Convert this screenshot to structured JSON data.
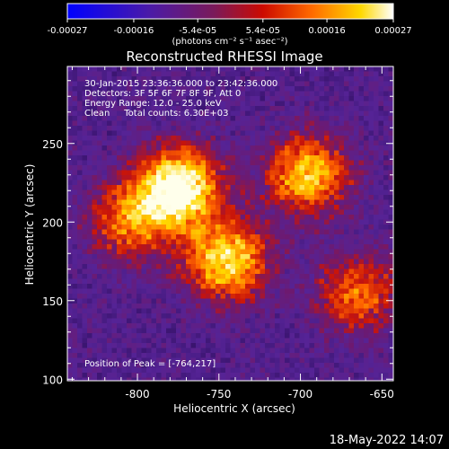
{
  "colorbar": {
    "tick_labels": [
      "-0.00027",
      "-0.00016",
      "-5.4e-05",
      "5.4e-05",
      "0.00016",
      "0.00027"
    ],
    "tick_values": [
      -0.00027,
      -0.00016,
      -5.4e-05,
      5.4e-05,
      0.00016,
      0.00027
    ],
    "range": [
      -0.00027,
      0.00027
    ],
    "unit_label": "(photons cm⁻² s⁻¹ asec⁻²)"
  },
  "chart_data": {
    "type": "heatmap",
    "title": "Reconstructed RHESSI Image",
    "xlabel": "Heliocentric X (arcsec)",
    "ylabel": "Heliocentric Y (arcsec)",
    "xlim": [
      -843,
      -643
    ],
    "ylim": [
      99,
      299
    ],
    "xticks": [
      -800,
      -750,
      -700,
      -650
    ],
    "yticks": [
      100,
      150,
      200,
      250
    ],
    "annotation_lines": [
      "30-Jan-2015 23:36:36.000 to 23:42:36.000",
      "Detectors: 3F 5F 6F 7F 8F 9F, Att 0",
      "Energy Range: 12.0 - 25.0 keV",
      "Clean     Total counts: 6.30E+03"
    ],
    "peak_label": "Position of Peak = [-764,217]",
    "peak": [
      -764,
      217
    ],
    "colormap": "blue-purple-red-orange-yellow-white",
    "sources": [
      {
        "x": -775,
        "y": 222,
        "intensity": 1.0
      },
      {
        "x": -745,
        "y": 175,
        "intensity": 0.8
      },
      {
        "x": -695,
        "y": 230,
        "intensity": 0.75
      },
      {
        "x": -805,
        "y": 200,
        "intensity": 0.55
      },
      {
        "x": -665,
        "y": 155,
        "intensity": 0.55
      }
    ]
  },
  "footer": {
    "timestamp": "18-May-2022 14:07"
  }
}
